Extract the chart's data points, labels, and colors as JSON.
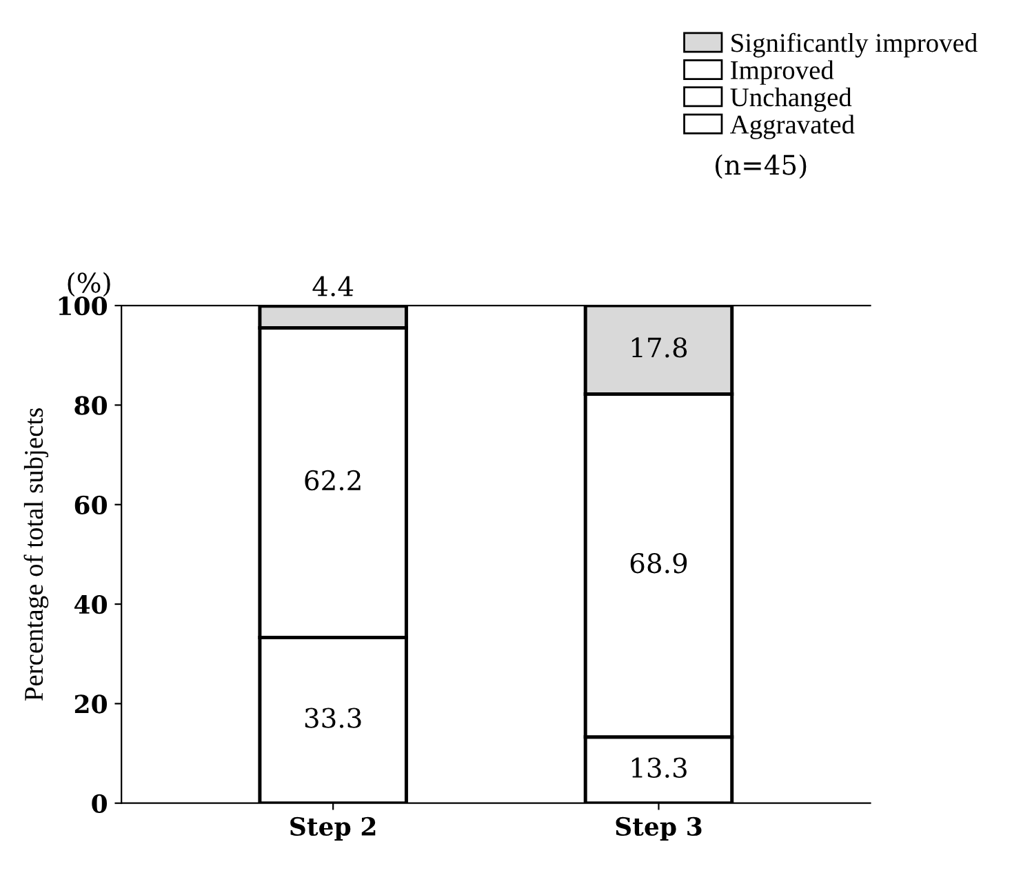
{
  "chart_data": {
    "type": "bar",
    "stacked": true,
    "categories": [
      "Step 2",
      "Step 3"
    ],
    "series": [
      {
        "name": "Aggravated",
        "color": "#ffffff",
        "values": [
          0,
          0
        ],
        "value_labels": [
          null,
          null
        ]
      },
      {
        "name": "Unchanged",
        "color": "#ffffff",
        "values": [
          33.3,
          13.3
        ],
        "value_labels": [
          "33.3",
          "13.3"
        ]
      },
      {
        "name": "Improved",
        "color": "#ffffff",
        "values": [
          62.2,
          68.9
        ],
        "value_labels": [
          "62.2",
          "68.9"
        ]
      },
      {
        "name": "Significantly improved",
        "color": "#d9d9d9",
        "values": [
          4.4,
          17.8
        ],
        "value_labels": [
          "4.4",
          "17.8"
        ]
      }
    ],
    "ylabel": "Percentage of total subjects",
    "ylim": [
      0,
      100
    ],
    "yticks": [
      0,
      20,
      40,
      60,
      80,
      100
    ],
    "legend": "top right",
    "grid": false,
    "annotations": [
      "(n=45)",
      "(%)"
    ]
  }
}
